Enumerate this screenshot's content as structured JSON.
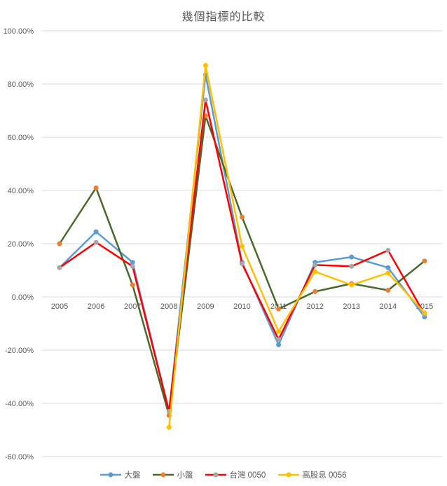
{
  "title": "幾個指標的比較",
  "chart_data": {
    "type": "line",
    "title": "幾個指標的比較",
    "categories": [
      "2005",
      "2006",
      "2007",
      "2008",
      "2009",
      "2010",
      "2011",
      "2012",
      "2013",
      "2014",
      "2015"
    ],
    "series": [
      {
        "name": "大盤",
        "color": "#5B9BD5",
        "marker_color": "#5B9BD5",
        "values": [
          11,
          24.5,
          13,
          -43,
          83.5,
          13,
          -18,
          13,
          15,
          11,
          -7.5
        ]
      },
      {
        "name": "小盤",
        "color": "#4A682A",
        "marker_color": "#ED7D31",
        "values": [
          20,
          41,
          4.5,
          -44.5,
          68,
          30,
          -4.5,
          2,
          5,
          2.5,
          13.5
        ]
      },
      {
        "name": "台灣 0050",
        "color": "#FF0000",
        "marker_color": "#A6A6A6",
        "values": [
          11,
          20.5,
          11.5,
          -43,
          74,
          12.5,
          -16,
          12,
          11.5,
          17.5,
          -6.5
        ]
      },
      {
        "name": "高股息 0056",
        "color": "#FFC000",
        "marker_color": "#FFC000",
        "values": [
          null,
          null,
          null,
          -49,
          87,
          19,
          -13,
          9.5,
          4.5,
          9,
          -6
        ]
      }
    ],
    "ylim": [
      -60,
      100
    ],
    "ytick_step": 20,
    "yticks": [
      "100.00%",
      "80.00%",
      "60.00%",
      "40.00%",
      "20.00%",
      "0.00%",
      "-20.00%",
      "-40.00%",
      "-60.00%"
    ],
    "xlabel": "",
    "ylabel": "",
    "grid": "horizontal",
    "legend_position": "bottom"
  },
  "colors": {
    "grid": "#D9D9D9",
    "tick_text": "#595959",
    "title_text": "#595959"
  }
}
